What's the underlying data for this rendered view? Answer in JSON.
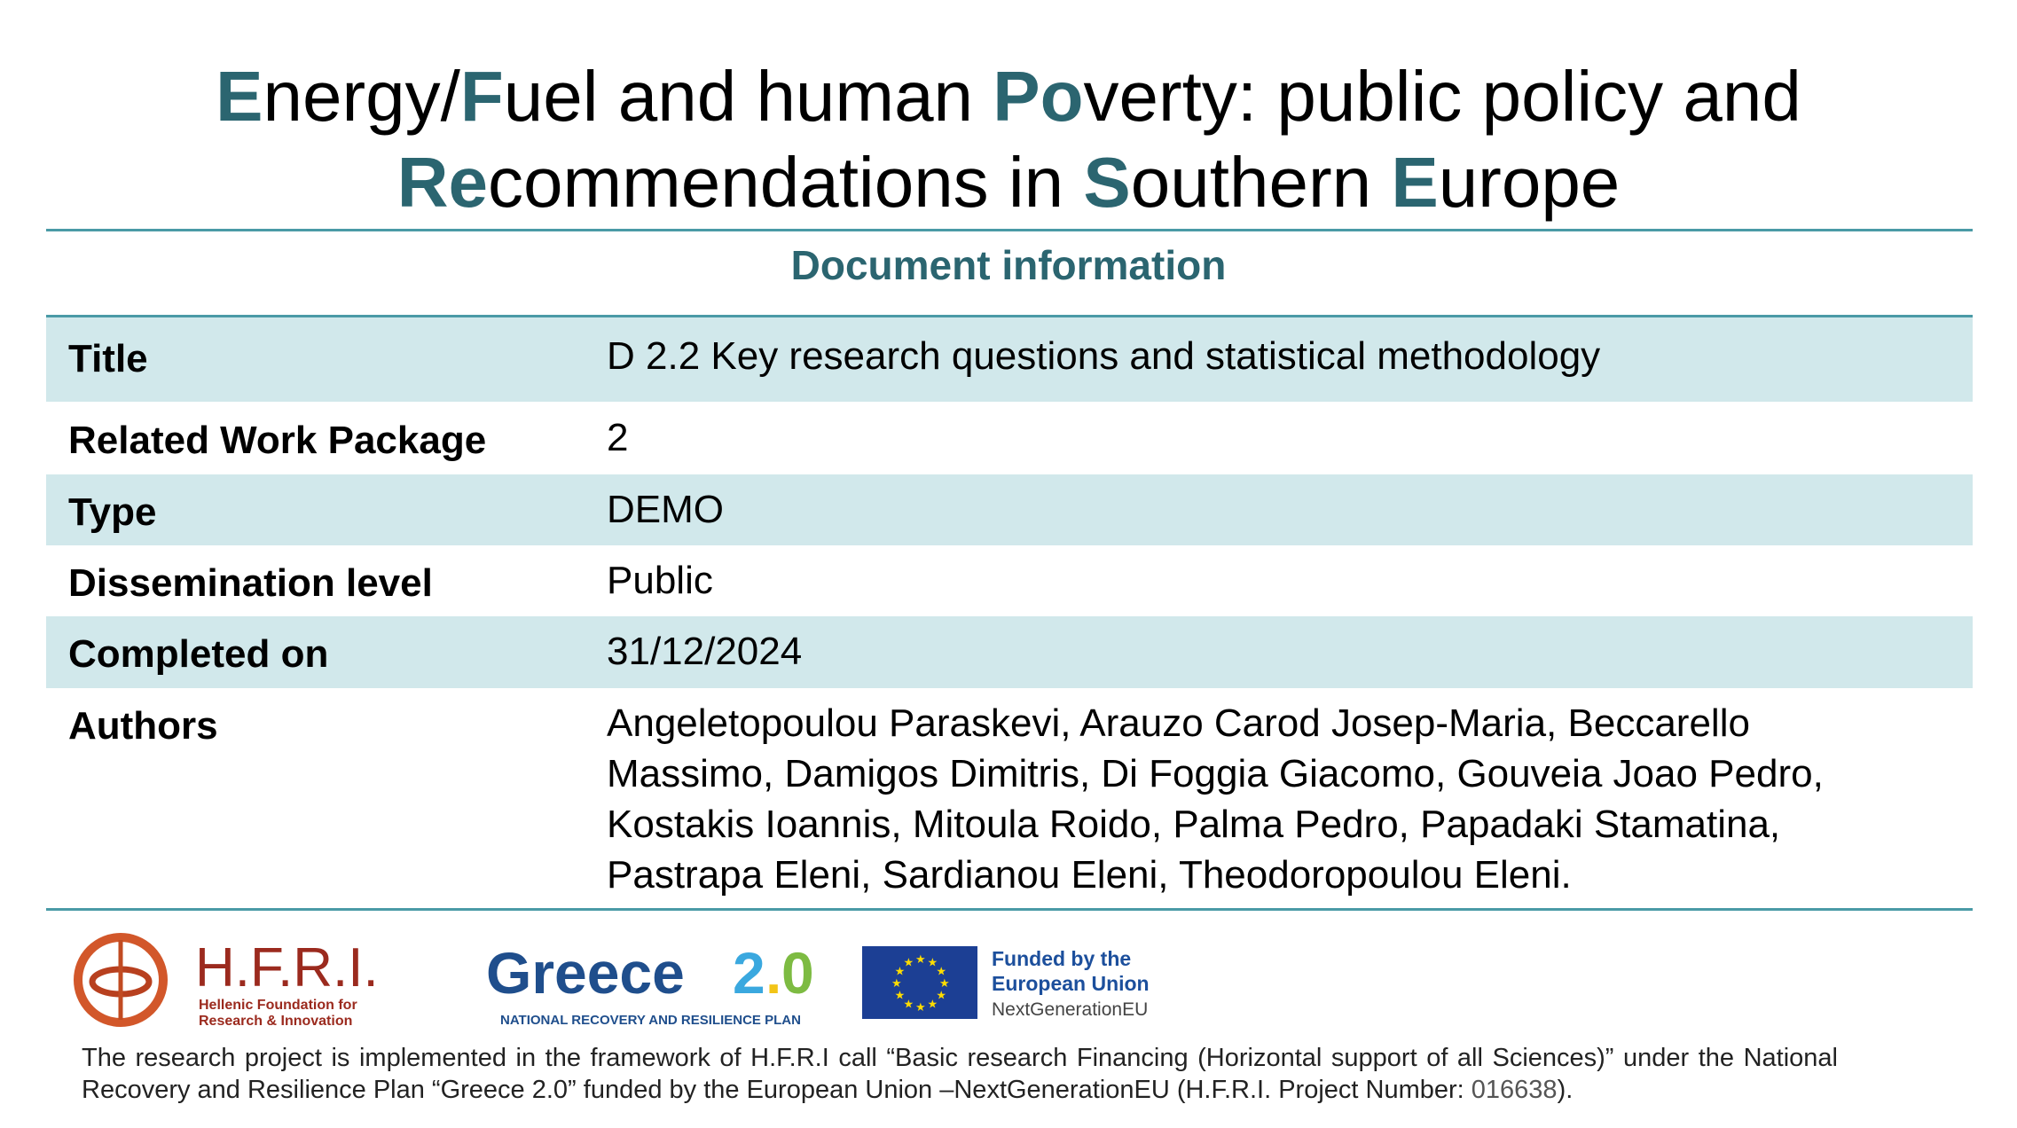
{
  "header": {
    "title_line1": [
      {
        "t": "E",
        "hl": true
      },
      {
        "t": "nergy/",
        "hl": false
      },
      {
        "t": "F",
        "hl": true
      },
      {
        "t": "uel and human ",
        "hl": false
      },
      {
        "t": "Po",
        "hl": true
      },
      {
        "t": "verty: public policy and",
        "hl": false
      }
    ],
    "title_line2": [
      {
        "t": "Re",
        "hl": true
      },
      {
        "t": "commendations in ",
        "hl": false
      },
      {
        "t": "S",
        "hl": true
      },
      {
        "t": "outhern ",
        "hl": false
      },
      {
        "t": "E",
        "hl": true
      },
      {
        "t": "urope",
        "hl": false
      }
    ]
  },
  "section_title": "Document information",
  "rows": [
    {
      "label": "Title",
      "value": "D 2.2 Key research questions and statistical methodology"
    },
    {
      "label": "Related Work Package",
      "value": "2"
    },
    {
      "label": "Type",
      "value": "DEMO"
    },
    {
      "label": "Dissemination level",
      "value": "Public"
    },
    {
      "label": "Completed on",
      "value": "31/12/2024"
    },
    {
      "label": "Authors",
      "value": "Angeletopoulou Paraskevi, Arauzo Carod Josep-Maria, Beccarello Massimo, Damigos Dimitris, Di Foggia Giacomo, Gouveia Joao Pedro, Kostakis Ioannis, Mitoula Roido, Palma Pedro, Papadaki Stamatina, Pastrapa Eleni, Sardianou Eleni, Theodoropoulou Eleni."
    }
  ],
  "logos": {
    "hfri": {
      "name": "H.F.R.I.",
      "sub1": "Hellenic Foundation for",
      "sub2": "Research & Innovation"
    },
    "greece": {
      "word": "Greece",
      "two": "2",
      "dot": ".",
      "zero": "0",
      "sub": "NATIONAL RECOVERY AND RESILIENCE PLAN"
    },
    "eu": {
      "line1": "Funded by the",
      "line2": "European Union",
      "line3": "NextGenerationEU"
    }
  },
  "footer": {
    "text": "The research project is implemented in the framework of H.F.R.I call “Basic research Financing (Horizontal support of all Sciences)” under the National Recovery and Resilience Plan “Greece 2.0” funded by the European Union –NextGenerationEU (H.F.R.I. Project Number: ",
    "project_number": "016638",
    "end": ")."
  },
  "colors": {
    "accent": "#2b6570",
    "rule": "#4a9aa6",
    "band": "#d1e8eb",
    "hfri": "#9b2a1e",
    "greece": "#1f4e8c",
    "eu_flag": "#1c3f94",
    "eu_star": "#ffdd00"
  }
}
